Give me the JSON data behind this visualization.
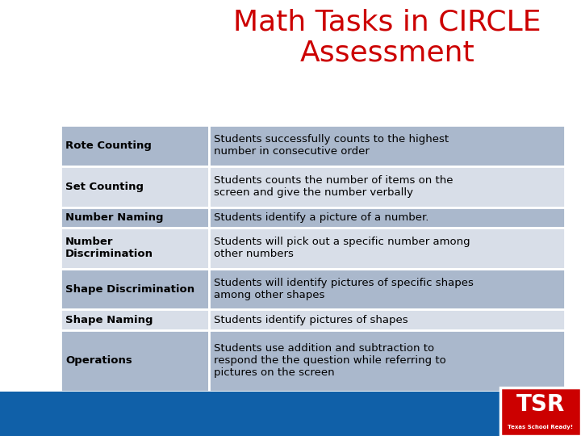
{
  "title_line1": "Math Tasks in CIRCLE",
  "title_line2": "Assessment",
  "title_color": "#cc0000",
  "title_fontsize": 26,
  "bg_color": "#ffffff",
  "table_rows": [
    {
      "label": "Rote Counting",
      "description": "Students successfully counts to the highest\nnumber in consecutive order",
      "shaded": true
    },
    {
      "label": "Set Counting",
      "description": "Students counts the number of items on the\nscreen and give the number verbally",
      "shaded": false
    },
    {
      "label": "Number Naming",
      "description": "Students identify a picture of a number.",
      "shaded": true
    },
    {
      "label": "Number\nDiscrimination",
      "description": "Students will pick out a specific number among\nother numbers",
      "shaded": false
    },
    {
      "label": "Shape Discrimination",
      "description": "Students will identify pictures of specific shapes\namong other shapes",
      "shaded": true
    },
    {
      "label": "Shape Naming",
      "description": "Students identify pictures of shapes",
      "shaded": false
    },
    {
      "label": "Operations",
      "description": "Students use addition and subtraction to\nrespond the the question while referring to\npictures on the screen",
      "shaded": true
    }
  ],
  "row_shaded_color": "#aab8cc",
  "row_unshaded_color": "#d8dee8",
  "label_color": "#000000",
  "desc_color": "#000000",
  "label_fontsize": 9.5,
  "desc_fontsize": 9.5,
  "footer_bar_color": "#1060a8",
  "tsr_bg_color": "#cc0000",
  "tsr_text": "TSR",
  "tsr_subtext": "Texas School Ready!",
  "tsr_text_color": "#ffffff",
  "col_split": 0.295
}
